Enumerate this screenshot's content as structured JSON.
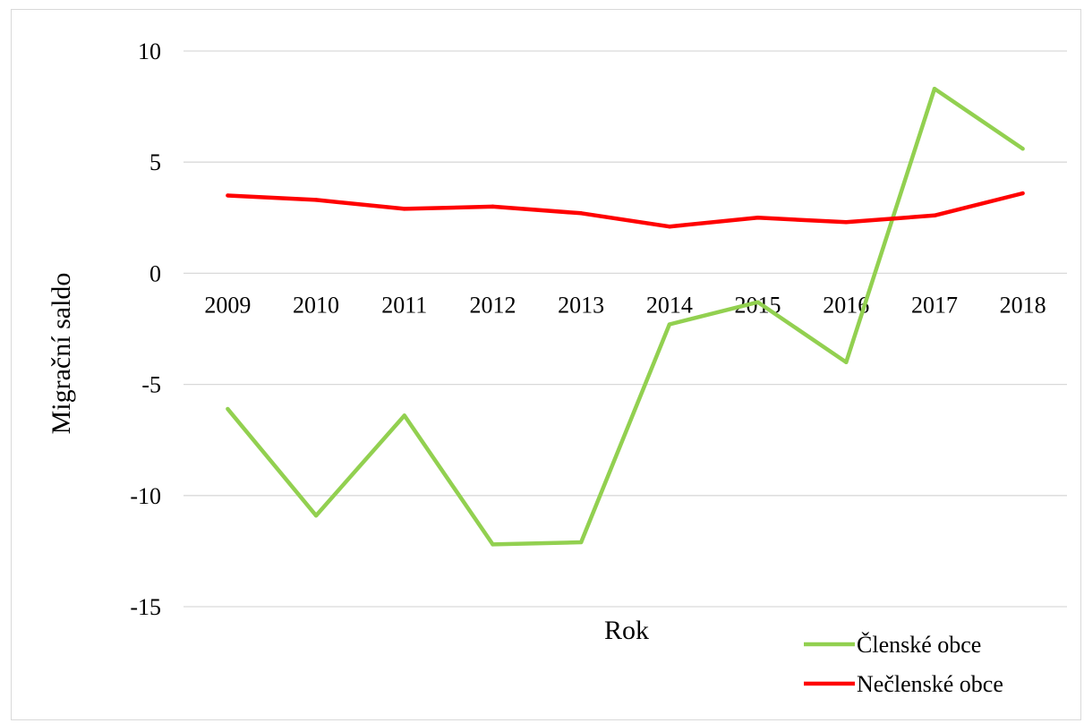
{
  "chart_data": {
    "type": "line",
    "title": "",
    "xlabel": "Rok",
    "ylabel": "Migrační saldo",
    "categories": [
      "2009",
      "2010",
      "2011",
      "2012",
      "2013",
      "2014",
      "2015",
      "2016",
      "2017",
      "2018"
    ],
    "ylim": [
      -15,
      10
    ],
    "yticks": [
      10,
      5,
      0,
      -5,
      -10,
      -15
    ],
    "grid": true,
    "legend_position": "bottom-right",
    "series": [
      {
        "name": "Členské obce",
        "color": "#92d050",
        "values": [
          -6.1,
          -10.9,
          -6.4,
          -12.2,
          -12.1,
          -2.3,
          -1.3,
          -4.0,
          8.3,
          5.6
        ]
      },
      {
        "name": "Nečlenské obce",
        "color": "#ff0000",
        "values": [
          3.5,
          3.3,
          2.9,
          3.0,
          2.7,
          2.1,
          2.5,
          2.3,
          2.6,
          3.6
        ]
      }
    ]
  }
}
